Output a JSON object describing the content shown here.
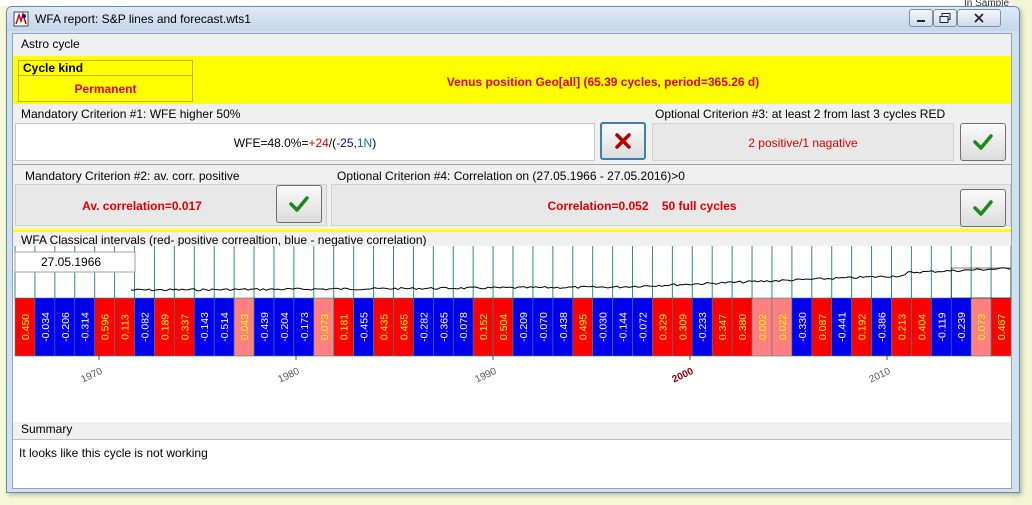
{
  "window": {
    "title": "WFA report: S&P lines and forecast.wts1"
  },
  "background_tab_text": "In Sample (Trainin",
  "astro_cycle": {
    "caption": "Astro cycle",
    "cycle_kind_label": "Cycle kind",
    "cycle_kind_value": "Permanent",
    "cycle_description": "Venus position Geo[all]  (65.39 cycles, period=365.26 d)"
  },
  "criterion1": {
    "caption": "Mandatory Criterion #1: WFE higher 50%",
    "wfe_prefix": "WFE=48.0%=",
    "wfe_pos": "+24",
    "wfe_sep": "/(",
    "wfe_neg": "-25",
    "wfe_comma": ",",
    "wfe_n": "1N",
    "wfe_end": ")",
    "status_icon": "red-cross-icon"
  },
  "criterion3": {
    "caption": "Optional Criterion #3: at least 2 from last 3 cycles RED",
    "value": "2 positive/1 nagative",
    "status_icon": "green-check-icon"
  },
  "criterion2": {
    "caption": "Mandatory Criterion #2: av. corr. positive",
    "value": "Av. correlation=0.017",
    "status_icon": "green-check-icon"
  },
  "criterion4": {
    "caption": "Optional Criterion #4: Correlation on (27.05.1966 - 27.05.2016)>0",
    "value": "Correlation=0.052    50 full cycles",
    "status_icon": "green-check-icon"
  },
  "wfa": {
    "caption": "WFA Classical intervals (red- positive correaltion, blue - negative correlation)",
    "start_date": "27.05.1966",
    "colors": {
      "positive": "#ff0000",
      "negative": "#0000ee",
      "weak_positive": "#ff8080",
      "separator": "#2e8b8b"
    },
    "intervals": [
      {
        "v": "0.450",
        "c": "positive"
      },
      {
        "v": "-0.034",
        "c": "negative"
      },
      {
        "v": "-0.206",
        "c": "negative"
      },
      {
        "v": "-0.314",
        "c": "negative"
      },
      {
        "v": "0.596",
        "c": "positive"
      },
      {
        "v": "0.113",
        "c": "positive"
      },
      {
        "v": "-0.082",
        "c": "negative"
      },
      {
        "v": "0.189",
        "c": "positive"
      },
      {
        "v": "0.337",
        "c": "positive"
      },
      {
        "v": "-0.143",
        "c": "negative"
      },
      {
        "v": "-0.514",
        "c": "negative"
      },
      {
        "v": "0.043",
        "c": "weak_positive"
      },
      {
        "v": "-0.439",
        "c": "negative"
      },
      {
        "v": "-0.204",
        "c": "negative"
      },
      {
        "v": "-0.173",
        "c": "negative"
      },
      {
        "v": "0.073",
        "c": "weak_positive"
      },
      {
        "v": "0.181",
        "c": "positive"
      },
      {
        "v": "-0.455",
        "c": "negative"
      },
      {
        "v": "0.435",
        "c": "positive"
      },
      {
        "v": "0.465",
        "c": "positive"
      },
      {
        "v": "-0.282",
        "c": "negative"
      },
      {
        "v": "-0.365",
        "c": "negative"
      },
      {
        "v": "-0.078",
        "c": "negative"
      },
      {
        "v": "0.152",
        "c": "positive"
      },
      {
        "v": "0.504",
        "c": "positive"
      },
      {
        "v": "-0.209",
        "c": "negative"
      },
      {
        "v": "-0.070",
        "c": "negative"
      },
      {
        "v": "-0.438",
        "c": "negative"
      },
      {
        "v": "0.495",
        "c": "positive"
      },
      {
        "v": "-0.030",
        "c": "negative"
      },
      {
        "v": "-0.144",
        "c": "negative"
      },
      {
        "v": "-0.072",
        "c": "negative"
      },
      {
        "v": "0.329",
        "c": "positive"
      },
      {
        "v": "0.309",
        "c": "positive"
      },
      {
        "v": "-0.233",
        "c": "negative"
      },
      {
        "v": "0.347",
        "c": "positive"
      },
      {
        "v": "0.380",
        "c": "positive"
      },
      {
        "v": "0.002",
        "c": "weak_positive"
      },
      {
        "v": "0.022",
        "c": "weak_positive"
      },
      {
        "v": "-0.330",
        "c": "negative"
      },
      {
        "v": "0.087",
        "c": "positive"
      },
      {
        "v": "-0.441",
        "c": "negative"
      },
      {
        "v": "0.192",
        "c": "positive"
      },
      {
        "v": "-0.386",
        "c": "negative"
      },
      {
        "v": "0.213",
        "c": "positive"
      },
      {
        "v": "0.404",
        "c": "positive"
      },
      {
        "v": "-0.119",
        "c": "negative"
      },
      {
        "v": "-0.239",
        "c": "negative"
      },
      {
        "v": "0.073",
        "c": "weak_positive"
      },
      {
        "v": "0.467",
        "c": "positive"
      }
    ],
    "year_labels": [
      "1970",
      "1980",
      "1990",
      "2000",
      "2010"
    ],
    "highlighted_year": "2000"
  },
  "summary": {
    "caption": "Summary",
    "text": "It looks like this cycle is not working"
  }
}
